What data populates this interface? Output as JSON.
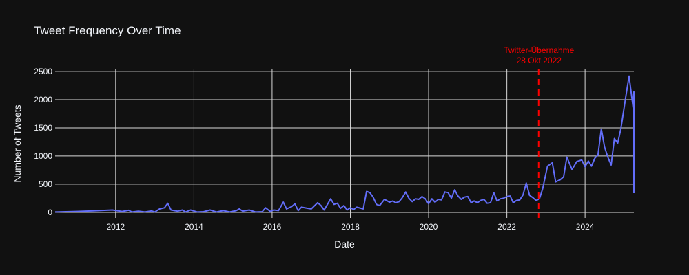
{
  "chart_data": {
    "type": "line",
    "title": "Tweet Frequency Over Time",
    "xlabel": "Date",
    "ylabel": "Number of Tweets",
    "x_range": [
      "2010-06-15",
      "2025-04-01"
    ],
    "ylim": [
      -100,
      2550
    ],
    "x_ticks": [
      "2012",
      "2014",
      "2016",
      "2018",
      "2020",
      "2022",
      "2024"
    ],
    "y_ticks": [
      0,
      500,
      1000,
      1500,
      2000,
      2500
    ],
    "y_tick_labels": [
      "0",
      "500",
      "1000",
      "1500",
      "2000",
      "2500"
    ],
    "grid": true,
    "line_color": "#636efa",
    "background": "#111111",
    "annotation": {
      "date": "2022-10-28",
      "line1": "Twitter-Übernahme",
      "line2": "28 Okt 2022",
      "color": "#ff0000"
    },
    "series": [
      {
        "values": [
          [
            "2010-06-15",
            5
          ],
          [
            "2011-01-01",
            15
          ],
          [
            "2011-06-01",
            25
          ],
          [
            "2011-12-01",
            40
          ],
          [
            "2012-03-01",
            15
          ],
          [
            "2012-05-01",
            35
          ],
          [
            "2012-06-01",
            5
          ],
          [
            "2012-08-01",
            20
          ],
          [
            "2012-10-01",
            5
          ],
          [
            "2012-12-01",
            25
          ],
          [
            "2013-01-01",
            5
          ],
          [
            "2013-02-15",
            60
          ],
          [
            "2013-04-01",
            80
          ],
          [
            "2013-05-01",
            160
          ],
          [
            "2013-06-01",
            40
          ],
          [
            "2013-08-01",
            20
          ],
          [
            "2013-09-15",
            40
          ],
          [
            "2013-10-15",
            5
          ],
          [
            "2013-12-01",
            40
          ],
          [
            "2014-02-01",
            5
          ],
          [
            "2014-04-01",
            10
          ],
          [
            "2014-06-01",
            40
          ],
          [
            "2014-08-01",
            5
          ],
          [
            "2014-10-01",
            30
          ],
          [
            "2014-12-01",
            5
          ],
          [
            "2015-02-01",
            30
          ],
          [
            "2015-03-01",
            60
          ],
          [
            "2015-04-01",
            20
          ],
          [
            "2015-06-01",
            40
          ],
          [
            "2015-08-01",
            5
          ],
          [
            "2015-10-01",
            10
          ],
          [
            "2015-11-01",
            80
          ],
          [
            "2015-12-15",
            15
          ],
          [
            "2016-01-15",
            40
          ],
          [
            "2016-03-01",
            30
          ],
          [
            "2016-04-15",
            180
          ],
          [
            "2016-05-15",
            60
          ],
          [
            "2016-07-01",
            100
          ],
          [
            "2016-08-01",
            150
          ],
          [
            "2016-09-01",
            30
          ],
          [
            "2016-10-01",
            90
          ],
          [
            "2016-12-01",
            70
          ],
          [
            "2017-01-01",
            60
          ],
          [
            "2017-03-01",
            170
          ],
          [
            "2017-04-01",
            120
          ],
          [
            "2017-05-01",
            40
          ],
          [
            "2017-07-01",
            240
          ],
          [
            "2017-08-01",
            140
          ],
          [
            "2017-09-01",
            160
          ],
          [
            "2017-10-01",
            70
          ],
          [
            "2017-11-01",
            120
          ],
          [
            "2017-12-01",
            40
          ],
          [
            "2018-01-01",
            80
          ],
          [
            "2018-02-01",
            50
          ],
          [
            "2018-03-01",
            90
          ],
          [
            "2018-05-01",
            60
          ],
          [
            "2018-06-01",
            370
          ],
          [
            "2018-07-01",
            350
          ],
          [
            "2018-08-01",
            270
          ],
          [
            "2018-09-01",
            140
          ],
          [
            "2018-10-01",
            120
          ],
          [
            "2018-11-15",
            230
          ],
          [
            "2019-01-01",
            180
          ],
          [
            "2019-02-01",
            200
          ],
          [
            "2019-03-01",
            170
          ],
          [
            "2019-04-01",
            190
          ],
          [
            "2019-05-01",
            260
          ],
          [
            "2019-06-01",
            360
          ],
          [
            "2019-07-01",
            250
          ],
          [
            "2019-08-01",
            190
          ],
          [
            "2019-09-01",
            240
          ],
          [
            "2019-10-01",
            230
          ],
          [
            "2019-11-01",
            280
          ],
          [
            "2019-12-01",
            240
          ],
          [
            "2020-01-01",
            150
          ],
          [
            "2020-02-01",
            240
          ],
          [
            "2020-03-01",
            180
          ],
          [
            "2020-04-01",
            230
          ],
          [
            "2020-05-01",
            220
          ],
          [
            "2020-06-01",
            360
          ],
          [
            "2020-07-01",
            350
          ],
          [
            "2020-08-01",
            250
          ],
          [
            "2020-09-01",
            400
          ],
          [
            "2020-10-01",
            290
          ],
          [
            "2020-11-01",
            230
          ],
          [
            "2020-12-01",
            270
          ],
          [
            "2021-01-01",
            280
          ],
          [
            "2021-02-01",
            170
          ],
          [
            "2021-03-01",
            200
          ],
          [
            "2021-04-01",
            170
          ],
          [
            "2021-05-01",
            210
          ],
          [
            "2021-06-01",
            230
          ],
          [
            "2021-07-01",
            160
          ],
          [
            "2021-08-01",
            170
          ],
          [
            "2021-09-01",
            350
          ],
          [
            "2021-10-01",
            200
          ],
          [
            "2021-11-01",
            240
          ],
          [
            "2021-12-01",
            250
          ],
          [
            "2022-01-01",
            280
          ],
          [
            "2022-02-01",
            290
          ],
          [
            "2022-03-01",
            170
          ],
          [
            "2022-04-01",
            210
          ],
          [
            "2022-05-01",
            220
          ],
          [
            "2022-06-01",
            310
          ],
          [
            "2022-07-01",
            520
          ],
          [
            "2022-08-01",
            300
          ],
          [
            "2022-09-01",
            260
          ],
          [
            "2022-10-01",
            210
          ],
          [
            "2022-11-01",
            240
          ],
          [
            "2022-12-01",
            420
          ],
          [
            "2023-01-15",
            820
          ],
          [
            "2023-03-01",
            880
          ],
          [
            "2023-04-01",
            540
          ],
          [
            "2023-05-15",
            580
          ],
          [
            "2023-06-15",
            630
          ],
          [
            "2023-07-15",
            980
          ],
          [
            "2023-09-01",
            760
          ],
          [
            "2023-10-15",
            900
          ],
          [
            "2023-12-01",
            930
          ],
          [
            "2024-01-01",
            810
          ],
          [
            "2024-02-01",
            910
          ],
          [
            "2024-03-01",
            820
          ],
          [
            "2024-04-01",
            960
          ],
          [
            "2024-05-01",
            1020
          ],
          [
            "2024-06-01",
            1480
          ],
          [
            "2024-07-01",
            1160
          ],
          [
            "2024-08-01",
            980
          ],
          [
            "2024-09-01",
            840
          ],
          [
            "2024-10-01",
            1310
          ],
          [
            "2024-11-01",
            1230
          ],
          [
            "2024-12-01",
            1490
          ],
          [
            "2025-01-15",
            2050
          ],
          [
            "2025-02-15",
            2420
          ],
          [
            "2025-03-15",
            2000
          ],
          [
            "2025-04-15",
            1760
          ],
          [
            "2025-05-15",
            2140
          ],
          [
            "2025-06-15",
            1660
          ],
          [
            "2025-07-15",
            340
          ]
        ]
      }
    ]
  }
}
